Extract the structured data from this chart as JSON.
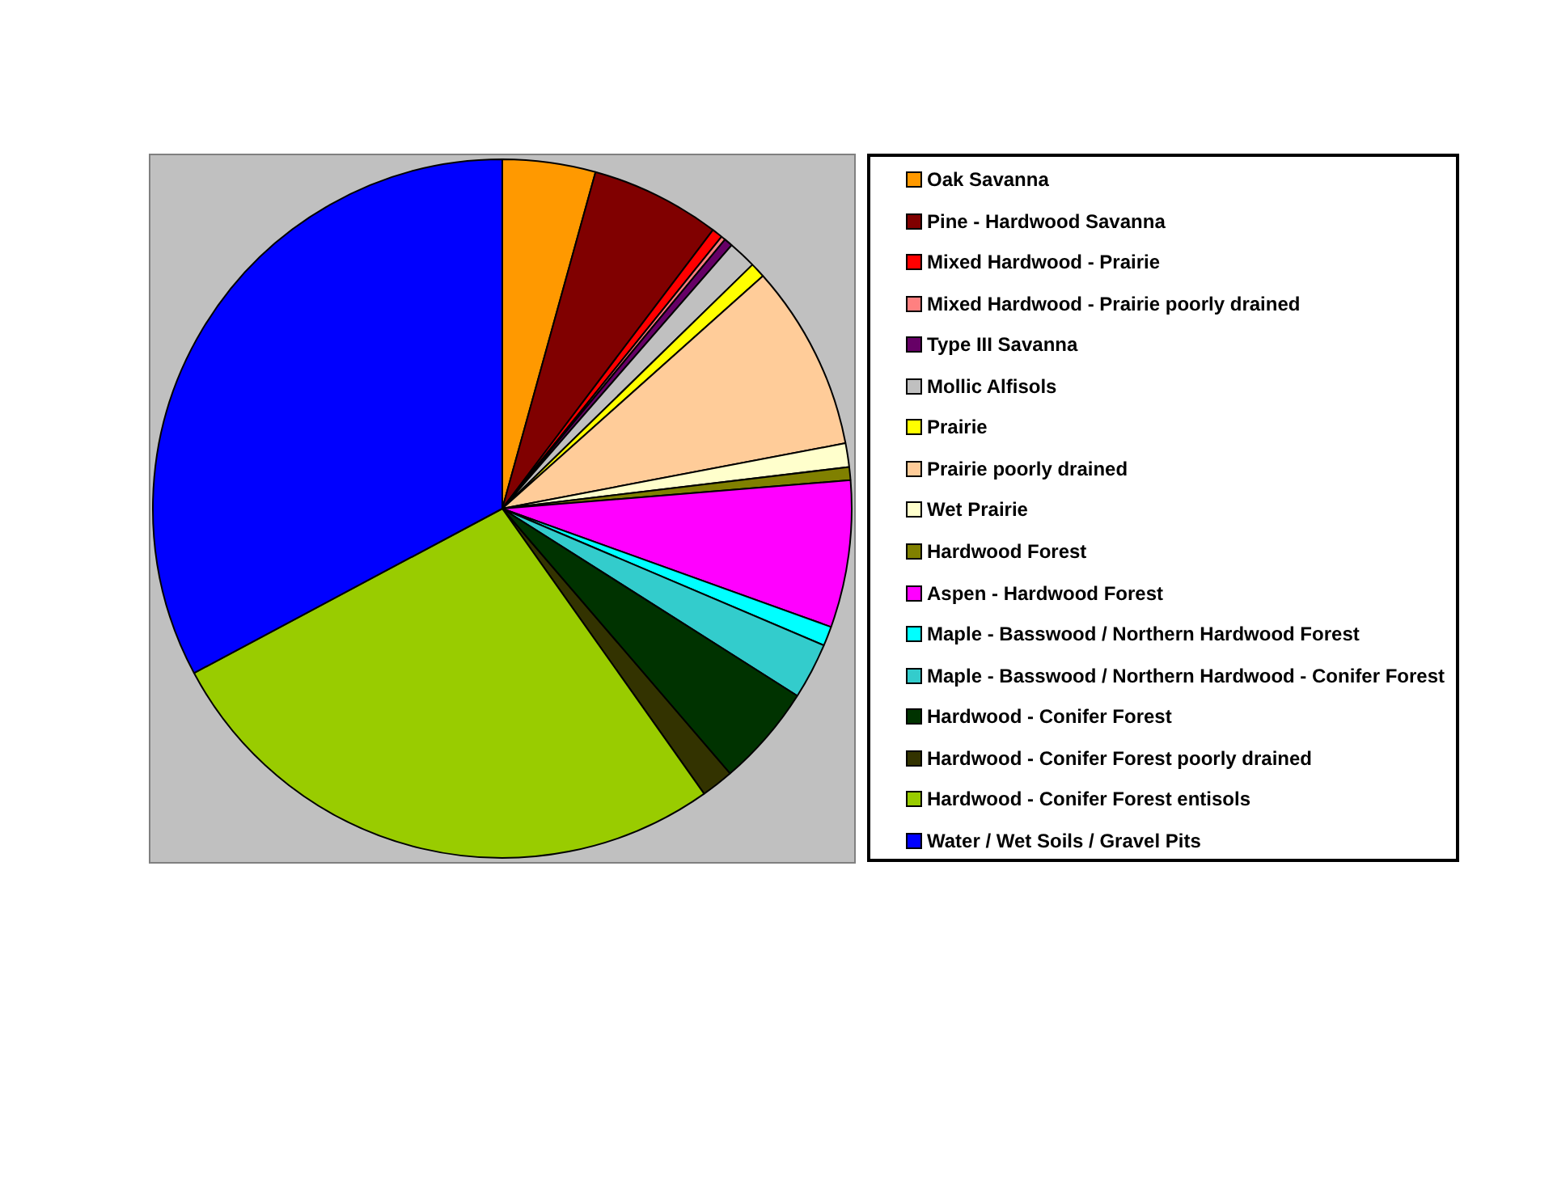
{
  "chart_data": {
    "type": "pie",
    "legend": "right",
    "categories": [
      "Oak Savanna",
      "Pine - Hardwood Savanna",
      "Mixed Hardwood - Prairie",
      "Mixed Hardwood - Prairie poorly drained",
      "Type III Savanna",
      "Mollic Alfisols",
      "Prairie",
      "Prairie poorly drained",
      "Wet Prairie",
      "Hardwood Forest",
      "Aspen - Hardwood Forest",
      "Maple - Basswood / Northern Hardwood Forest",
      "Maple - Basswood / Northern Hardwood - Conifer Forest",
      "Hardwood - Conifer Forest",
      "Hardwood - Conifer Forest poorly drained",
      "Hardwood - Conifer Forest entisols",
      "Water / Wet Soils / Gravel Pits"
    ],
    "values": [
      4.3,
      6.0,
      0.5,
      0.2,
      0.4,
      1.3,
      0.7,
      8.6,
      1.1,
      0.6,
      6.8,
      0.9,
      2.6,
      4.7,
      1.5,
      27.0,
      32.8
    ],
    "colors": [
      "#ff9900",
      "#800000",
      "#ff0000",
      "#ff8080",
      "#660066",
      "#c0c0c0",
      "#ffff00",
      "#ffcc99",
      "#ffffcc",
      "#808000",
      "#ff00ff",
      "#00ffff",
      "#33cccc",
      "#003300",
      "#333300",
      "#99cc00",
      "#0000ff"
    ]
  }
}
